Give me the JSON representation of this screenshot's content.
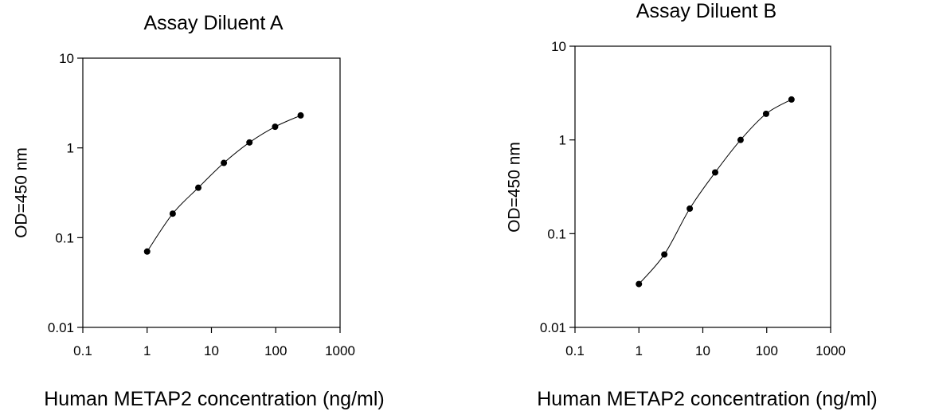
{
  "chart_data": [
    {
      "type": "scatter",
      "title": "Assay Diluent A",
      "xlabel": "Human METAP2 concentration (ng/ml)",
      "ylabel": "OD=450 nm",
      "xscale": "log",
      "yscale": "log",
      "xlim": [
        0.1,
        1000
      ],
      "ylim": [
        0.01,
        10
      ],
      "xticks": [
        0.1,
        1,
        10,
        100,
        1000
      ],
      "xtick_labels": [
        "0.1",
        "1",
        "10",
        "100",
        "1000"
      ],
      "yticks": [
        0.01,
        0.1,
        1,
        10
      ],
      "ytick_labels": [
        "0.01",
        "0.1",
        "1",
        "10"
      ],
      "grid": false,
      "connected": true,
      "series": [
        {
          "x": [
            1,
            2.5,
            6.25,
            15.6,
            39,
            97.7,
            244
          ],
          "y": [
            0.07,
            0.185,
            0.36,
            0.68,
            1.15,
            1.72,
            2.3
          ]
        }
      ]
    },
    {
      "type": "scatter",
      "title": "Assay Diluent B",
      "xlabel": "Human METAP2 concentration (ng/ml)",
      "ylabel": "OD=450 nm",
      "xscale": "log",
      "yscale": "log",
      "xlim": [
        0.1,
        1000
      ],
      "ylim": [
        0.01,
        10
      ],
      "xticks": [
        0.1,
        1,
        10,
        100,
        1000
      ],
      "xtick_labels": [
        "0.1",
        "1",
        "10",
        "100",
        "1000"
      ],
      "yticks": [
        0.01,
        0.1,
        1,
        10
      ],
      "ytick_labels": [
        "0.01",
        "0.1",
        "1",
        "10"
      ],
      "grid": false,
      "connected": true,
      "series": [
        {
          "x": [
            1,
            2.5,
            6.25,
            15.6,
            39,
            97.7,
            244
          ],
          "y": [
            0.029,
            0.06,
            0.185,
            0.45,
            1.0,
            1.9,
            2.7
          ]
        }
      ]
    }
  ]
}
